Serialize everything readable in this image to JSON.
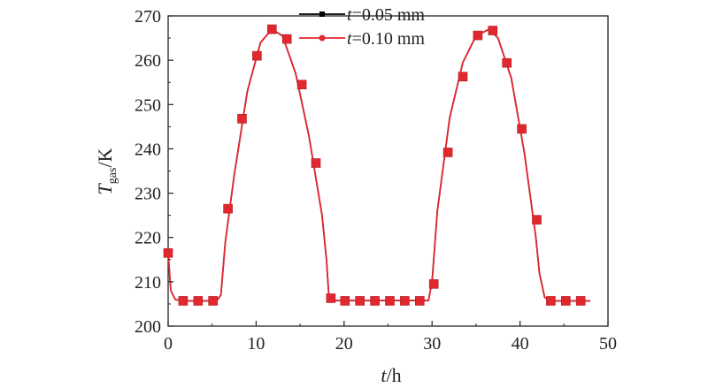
{
  "chart_data": {
    "type": "line",
    "xlabel": {
      "var": "t",
      "unit": "/h"
    },
    "ylabel": {
      "var": "T",
      "sub": "gas",
      "unit": "/K"
    },
    "xlim": [
      0,
      50
    ],
    "ylim": [
      200,
      270
    ],
    "xticks": [
      "0",
      "10",
      "20",
      "30",
      "40",
      "50"
    ],
    "yticks": [
      "200",
      "210",
      "220",
      "230",
      "240",
      "250",
      "260",
      "270"
    ],
    "legend_position": "top-center",
    "series": [
      {
        "name": "t=0.05 mm",
        "label_var": "t",
        "label_rest": "=0.05 mm",
        "color": "#000000",
        "marker": "square",
        "x": [
          0,
          0.3,
          0.8,
          1.5,
          5.5,
          6.0,
          6.5,
          7.5,
          9,
          10.5,
          11.8,
          13,
          14.5,
          16,
          17.5,
          18.0,
          18.3,
          29.6,
          30.0,
          30.6,
          32,
          33.5,
          35,
          36.5,
          37.5,
          39,
          40.5,
          41.8,
          42.2,
          42.8,
          43.5,
          48
        ],
        "y": [
          216.5,
          208,
          206,
          205.7,
          205.7,
          207,
          219,
          234,
          253,
          264,
          267,
          265.5,
          257,
          243,
          225,
          215,
          205.8,
          205.8,
          210,
          226,
          247,
          259.5,
          265.5,
          267,
          265,
          256,
          239,
          220,
          212,
          206.5,
          205.7,
          205.7
        ]
      },
      {
        "name": "t=0.10 mm",
        "label_var": "t",
        "label_rest": "=0.10 mm",
        "color": "#e0282e",
        "marker": "square",
        "x": [
          0,
          0.3,
          0.8,
          1.5,
          5.5,
          6.0,
          6.5,
          7.5,
          9,
          10.5,
          11.8,
          13,
          14.5,
          16,
          17.5,
          18.0,
          18.3,
          29.6,
          30.0,
          30.6,
          32,
          33.5,
          35,
          36.5,
          37.5,
          39,
          40.5,
          41.8,
          42.2,
          42.8,
          43.5,
          48
        ],
        "y": [
          216.5,
          208,
          206,
          205.7,
          205.7,
          207,
          219,
          234,
          253,
          264,
          267,
          265.5,
          257,
          243,
          225,
          215,
          205.8,
          205.8,
          210,
          226,
          247,
          259.5,
          265.5,
          267,
          265,
          256,
          239,
          220,
          212,
          206.5,
          205.7,
          205.7
        ],
        "marker_x": [
          0,
          1.7,
          3.4,
          5.1,
          6.8,
          8.4,
          10.1,
          11.8,
          13.5,
          15.2,
          16.8,
          18.5,
          20.1,
          21.8,
          23.5,
          25.2,
          26.9,
          28.6,
          30.2,
          31.8,
          33.5,
          35.2,
          36.9,
          38.5,
          40.2,
          41.9,
          43.5,
          45.2,
          46.9
        ],
        "marker_y": [
          216.5,
          205.7,
          205.7,
          205.7,
          226.5,
          246.8,
          261,
          267,
          264.8,
          254.5,
          236.8,
          206.3,
          205.7,
          205.7,
          205.7,
          205.7,
          205.7,
          205.7,
          209.5,
          239.2,
          256.3,
          265.6,
          266.7,
          259.4,
          244.5,
          224,
          205.7,
          205.7,
          205.7
        ]
      }
    ]
  }
}
